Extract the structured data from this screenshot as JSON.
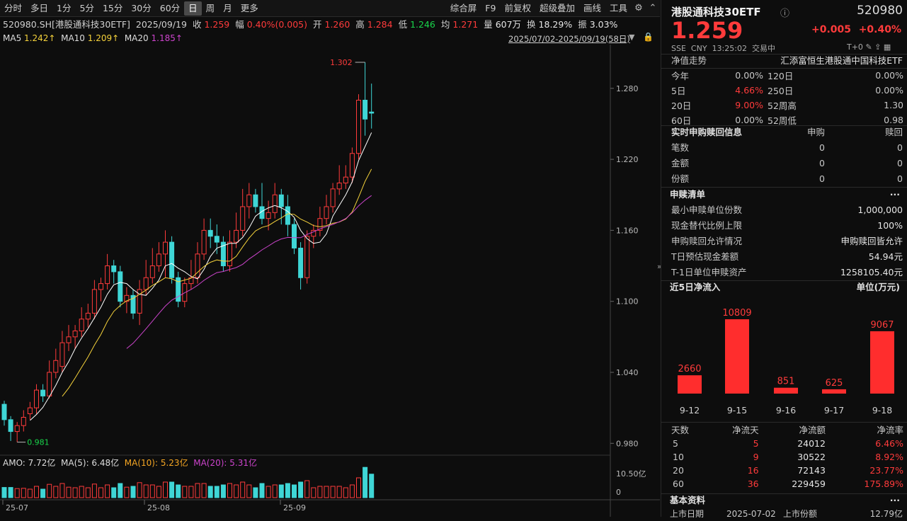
{
  "toolbar": {
    "items": [
      "分时",
      "多日",
      "1分",
      "5分",
      "15分",
      "30分",
      "60分",
      "日",
      "周",
      "月",
      "更多"
    ],
    "active": "日",
    "right": [
      "综合屏",
      "F9",
      "前复权",
      "超级叠加",
      "画线",
      "工具"
    ]
  },
  "info": {
    "code": "520980.SH[港股通科技30ETF]",
    "date": "2025/09/19",
    "close_label": "收",
    "close": "1.259",
    "change_label": "幅",
    "change": "0.40%(0.005)",
    "open_label": "开",
    "open": "1.260",
    "high_label": "高",
    "high": "1.284",
    "low_label": "低",
    "low": "1.246",
    "avg_label": "均",
    "avg": "1.271",
    "vol_label": "量",
    "vol": "607万",
    "turn_label": "换",
    "turn": "18.29%",
    "amp_label": "振",
    "amp": "3.03%"
  },
  "ma": {
    "ma5_label": "MA5",
    "ma5": "1.242↑",
    "ma10_label": "MA10",
    "ma10": "1.209↑",
    "ma20_label": "MA20",
    "ma20": "1.185↑",
    "range": "2025/07/02-2025/09/19(58日)"
  },
  "amo": {
    "label": "AMO: 7.72亿",
    "ma5": "MA(5): 6.48亿",
    "ma10": "MA(10): 5.23亿",
    "ma20": "MA(20): 5.31亿"
  },
  "colors": {
    "up": "#ff3b3b",
    "down": "#3fd6d6",
    "ma5": "#ffffff",
    "ma10": "#f5d23b",
    "ma20": "#cc44cc"
  },
  "chart_data": {
    "type": "candlestick",
    "ylim": [
      0.97,
      1.305
    ],
    "y_ticks": [
      "1.280",
      "1.220",
      "1.160",
      "1.100",
      "1.040",
      "0.980"
    ],
    "x_ticks": [
      "25-07",
      "25-08",
      "25-09"
    ],
    "max_label": "1.302",
    "min_label": "0.981",
    "vol_ticks": [
      "10.50亿",
      "0"
    ],
    "candles": [
      [
        1.013,
        1.0,
        1.016,
        0.995
      ],
      [
        1.0,
        0.99,
        1.003,
        0.982
      ],
      [
        0.99,
        0.995,
        0.998,
        0.981
      ],
      [
        0.995,
        1.002,
        1.008,
        0.99
      ],
      [
        1.005,
        1.01,
        1.015,
        1.0
      ],
      [
        1.01,
        1.025,
        1.03,
        1.005
      ],
      [
        1.025,
        1.02,
        1.03,
        1.015
      ],
      [
        1.02,
        1.04,
        1.05,
        1.018
      ],
      [
        1.04,
        1.05,
        1.06,
        1.035
      ],
      [
        1.045,
        1.065,
        1.075,
        1.04
      ],
      [
        1.065,
        1.07,
        1.08,
        1.058
      ],
      [
        1.07,
        1.075,
        1.08,
        1.06
      ],
      [
        1.075,
        1.085,
        1.095,
        1.07
      ],
      [
        1.085,
        1.09,
        1.098,
        1.078
      ],
      [
        1.09,
        1.11,
        1.118,
        1.085
      ],
      [
        1.11,
        1.115,
        1.12,
        1.1
      ],
      [
        1.115,
        1.13,
        1.14,
        1.11
      ],
      [
        1.13,
        1.125,
        1.135,
        1.115
      ],
      [
        1.125,
        1.1,
        1.13,
        1.095
      ],
      [
        1.1,
        1.105,
        1.112,
        1.09
      ],
      [
        1.105,
        1.09,
        1.11,
        1.085
      ],
      [
        1.09,
        1.11,
        1.118,
        1.08
      ],
      [
        1.11,
        1.12,
        1.135,
        1.105
      ],
      [
        1.12,
        1.13,
        1.145,
        1.115
      ],
      [
        1.13,
        1.14,
        1.15,
        1.125
      ],
      [
        1.14,
        1.15,
        1.16,
        1.12
      ],
      [
        1.15,
        1.12,
        1.155,
        1.115
      ],
      [
        1.12,
        1.1,
        1.125,
        1.095
      ],
      [
        1.1,
        1.115,
        1.12,
        1.095
      ],
      [
        1.115,
        1.12,
        1.135,
        1.11
      ],
      [
        1.12,
        1.14,
        1.15,
        1.115
      ],
      [
        1.14,
        1.16,
        1.17,
        1.135
      ],
      [
        1.16,
        1.155,
        1.17,
        1.145
      ],
      [
        1.155,
        1.15,
        1.165,
        1.14
      ],
      [
        1.15,
        1.13,
        1.155,
        1.125
      ],
      [
        1.13,
        1.15,
        1.16,
        1.125
      ],
      [
        1.15,
        1.16,
        1.175,
        1.145
      ],
      [
        1.16,
        1.18,
        1.195,
        1.155
      ],
      [
        1.18,
        1.19,
        1.2,
        1.17
      ],
      [
        1.19,
        1.18,
        1.195,
        1.175
      ],
      [
        1.18,
        1.17,
        1.2,
        1.165
      ],
      [
        1.17,
        1.175,
        1.185,
        1.16
      ],
      [
        1.175,
        1.19,
        1.2,
        1.17
      ],
      [
        1.19,
        1.18,
        1.195,
        1.165
      ],
      [
        1.18,
        1.165,
        1.19,
        1.155
      ],
      [
        1.165,
        1.145,
        1.17,
        1.14
      ],
      [
        1.145,
        1.12,
        1.15,
        1.11
      ],
      [
        1.12,
        1.155,
        1.16,
        1.115
      ],
      [
        1.155,
        1.16,
        1.165,
        1.145
      ],
      [
        1.16,
        1.17,
        1.18,
        1.155
      ],
      [
        1.17,
        1.18,
        1.19,
        1.165
      ],
      [
        1.18,
        1.195,
        1.2,
        1.175
      ],
      [
        1.195,
        1.2,
        1.215,
        1.19
      ],
      [
        1.2,
        1.205,
        1.215,
        1.195
      ],
      [
        1.205,
        1.225,
        1.23,
        1.2
      ],
      [
        1.225,
        1.27,
        1.275,
        1.22
      ],
      [
        1.27,
        1.254,
        1.302,
        1.24
      ],
      [
        1.26,
        1.259,
        1.284,
        1.246
      ]
    ]
  },
  "sidebar": {
    "name": "港股通科技30ETF",
    "code": "520980",
    "price": "1.259",
    "chg": "+0.005",
    "pct": "+0.40%",
    "market": "SSE",
    "currency": "CNY",
    "time": "13:25:02",
    "status": "交易中",
    "t0": "T+0",
    "nav_label": "净值走势",
    "company": "汇添富恒生港股通中国科技ETF",
    "perf": [
      [
        "今年",
        "0.00%",
        "120日",
        "0.00%"
      ],
      [
        "5日",
        "4.66%",
        "250日",
        "0.00%"
      ],
      [
        "20日",
        "9.00%",
        "52周高",
        "1.30"
      ],
      [
        "60日",
        "0.00%",
        "52周低",
        "0.98"
      ]
    ],
    "realtime": {
      "title": "实时申购赎回信息",
      "col1": "申购",
      "col2": "赎回",
      "rows": [
        [
          "笔数",
          "0",
          "0"
        ],
        [
          "金额",
          "0",
          "0"
        ],
        [
          "份额",
          "0",
          "0"
        ]
      ]
    },
    "list": {
      "title": "申赎清单",
      "rows": [
        [
          "最小申赎单位份数",
          "1,000,000"
        ],
        [
          "现金替代比例上限",
          "100%"
        ],
        [
          "申购赎回允许情况",
          "申购赎回皆允许"
        ],
        [
          "T日预估现金差额",
          "54.94元"
        ],
        [
          "T-1日单位申赎资产",
          "1258105.40元"
        ]
      ]
    },
    "flow": {
      "title": "近5日净流入",
      "unit": "单位(万元)",
      "bars": [
        {
          "d": "9-12",
          "v": 2660
        },
        {
          "d": "9-15",
          "v": 10809
        },
        {
          "d": "9-16",
          "v": 851
        },
        {
          "d": "9-17",
          "v": 625
        },
        {
          "d": "9-18",
          "v": 9067
        }
      ]
    },
    "flowtable": {
      "head": [
        "天数",
        "净流天",
        "净流额",
        "净流率"
      ],
      "rows": [
        [
          "5",
          "5",
          "24012",
          "6.46%"
        ],
        [
          "10",
          "9",
          "30522",
          "8.92%"
        ],
        [
          "20",
          "16",
          "72143",
          "23.77%"
        ],
        [
          "60",
          "36",
          "229459",
          "175.89%"
        ]
      ]
    },
    "basic": {
      "title": "基本资料",
      "row": [
        "上市日期",
        "2025-07-02",
        "上市份额",
        "12.79亿"
      ]
    }
  }
}
